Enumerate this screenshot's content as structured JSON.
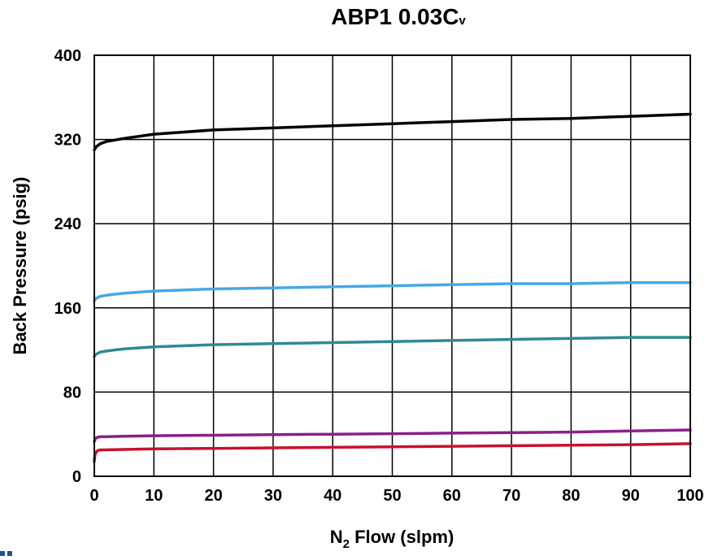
{
  "chart_data": {
    "type": "line",
    "title_main": "ABP1 0.03C",
    "title_sub": "v",
    "xlabel_main": "N",
    "xlabel_sub": "2",
    "xlabel_rest": " Flow (slpm)",
    "ylabel": "Back Pressure (psig)",
    "xlim": [
      0,
      100
    ],
    "ylim": [
      0,
      400
    ],
    "xticks": [
      "0",
      "10",
      "20",
      "30",
      "40",
      "50",
      "60",
      "70",
      "80",
      "90",
      "100"
    ],
    "yticks": [
      "0",
      "80",
      "160",
      "240",
      "320",
      "400"
    ],
    "grid": true,
    "series": [
      {
        "color": "#000000",
        "x": [
          0,
          0.3,
          1,
          2,
          5,
          10,
          20,
          30,
          40,
          50,
          60,
          70,
          80,
          90,
          100
        ],
        "y": [
          310,
          313,
          316,
          318,
          321,
          325,
          329,
          331,
          333,
          335,
          337,
          339,
          340,
          342,
          344
        ]
      },
      {
        "color": "#45a8e6",
        "x": [
          0,
          0.3,
          1,
          2,
          5,
          10,
          20,
          30,
          40,
          50,
          60,
          70,
          80,
          90,
          100
        ],
        "y": [
          167,
          169,
          171,
          172,
          174,
          176,
          178,
          179,
          180,
          181,
          182,
          183,
          183,
          184,
          184
        ]
      },
      {
        "color": "#2e8a93",
        "x": [
          0,
          0.3,
          1,
          2,
          5,
          10,
          20,
          30,
          40,
          50,
          60,
          70,
          80,
          90,
          100
        ],
        "y": [
          114,
          116,
          118,
          119,
          121,
          123,
          125,
          126,
          127,
          128,
          129,
          130,
          131,
          132,
          132
        ]
      },
      {
        "color": "#8b1f8b",
        "x": [
          0,
          0.2,
          0.5,
          1,
          5,
          10,
          20,
          30,
          40,
          50,
          60,
          70,
          80,
          90,
          100
        ],
        "y": [
          33,
          36,
          37,
          37.5,
          38,
          38.5,
          39,
          39.5,
          40,
          40.5,
          41,
          41.5,
          42,
          43,
          44
        ]
      },
      {
        "color": "#c8102e",
        "x": [
          0,
          0.1,
          0.3,
          0.6,
          1,
          5,
          10,
          20,
          30,
          40,
          50,
          60,
          70,
          80,
          90,
          100
        ],
        "y": [
          14,
          20,
          23,
          24.5,
          25,
          25.5,
          26,
          26.5,
          27,
          27.5,
          28,
          28.5,
          29,
          29.5,
          30,
          31
        ]
      }
    ]
  }
}
